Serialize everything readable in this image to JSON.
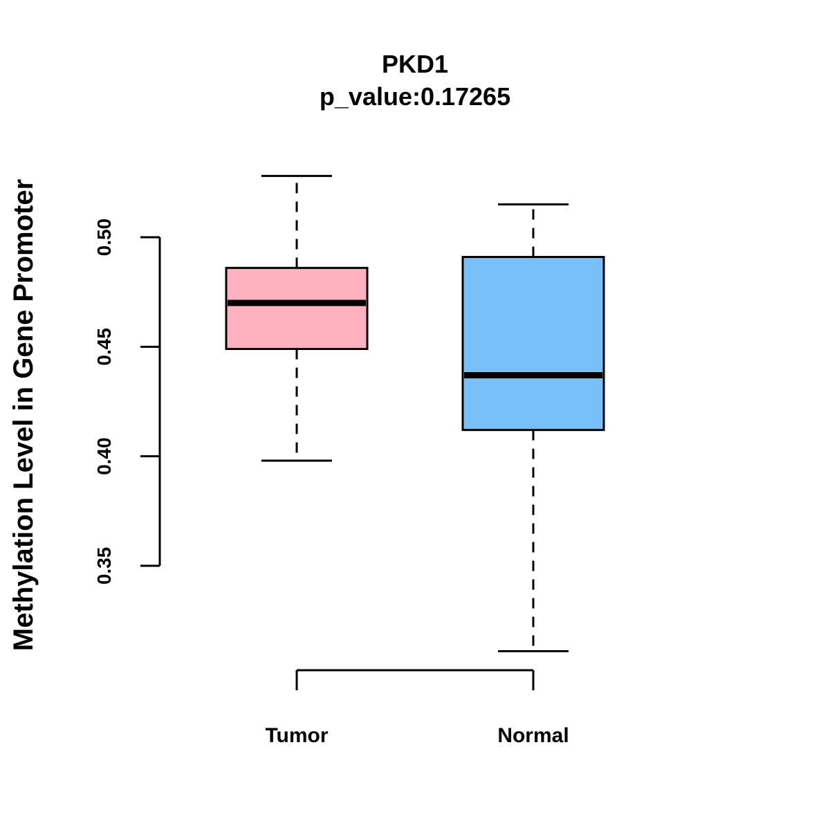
{
  "chart_data": {
    "type": "boxplot",
    "title": "PKD1",
    "subtitle": "p_value:0.17265",
    "xlabel": "",
    "ylabel": "Methylation Level in Gene Promoter",
    "ylim": [
      0.35,
      0.5
    ],
    "yticks": [
      0.35,
      0.4,
      0.45,
      0.5
    ],
    "ytick_labels": [
      "0.35",
      "0.40",
      "0.45",
      "0.50"
    ],
    "categories": [
      "Tumor",
      "Normal"
    ],
    "series": [
      {
        "category": "Tumor",
        "color": "#FFB1C1",
        "whisker_low": 0.398,
        "q1": 0.449,
        "median": 0.47,
        "q3": 0.486,
        "whisker_high": 0.528
      },
      {
        "category": "Normal",
        "color": "#79C0F9",
        "whisker_low": 0.311,
        "q1": 0.412,
        "median": 0.437,
        "q3": 0.491,
        "whisker_high": 0.515
      }
    ],
    "grid": false,
    "legend": "none"
  }
}
